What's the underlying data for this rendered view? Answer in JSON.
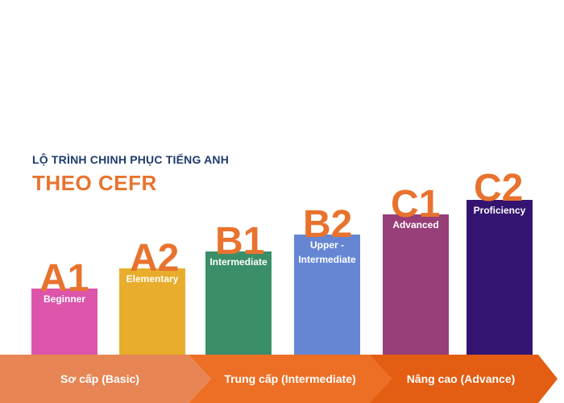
{
  "title": "LỘ TRÌNH CHINH PHỤC TIẾNG ANH",
  "subtitle": "THEO CEFR",
  "levels": [
    {
      "code": "A1",
      "label_lines": [
        "Beginner"
      ],
      "color": "#dc55ab",
      "rank": 1
    },
    {
      "code": "A2",
      "label_lines": [
        "Elementary"
      ],
      "color": "#e8ad2c",
      "rank": 2
    },
    {
      "code": "B1",
      "label_lines": [
        "Intermediate"
      ],
      "color": "#3a8e68",
      "rank": 3
    },
    {
      "code": "B2",
      "label_lines": [
        "Upper -",
        "Intermediate"
      ],
      "color": "#6686d4",
      "rank": 4
    },
    {
      "code": "C1",
      "label_lines": [
        "Advanced"
      ],
      "color": "#983e78",
      "rank": 5
    },
    {
      "code": "C2",
      "label_lines": [
        "Proficiency"
      ],
      "color": "#331470",
      "rank": 6
    }
  ],
  "stages": [
    {
      "label": "Sơ cấp (Basic)",
      "color": "#e78554"
    },
    {
      "label": "Trung cấp (Intermediate)",
      "color": "#ed6f25"
    },
    {
      "label": "Nâng cao (Advance)",
      "color": "#e35d13"
    }
  ]
}
